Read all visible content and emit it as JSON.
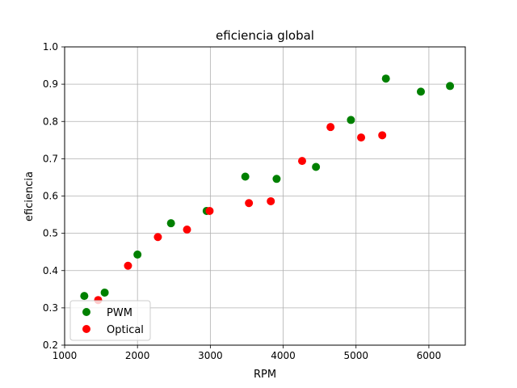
{
  "chart_data": {
    "type": "scatter",
    "title": "eficiencia global",
    "xlabel": "RPM",
    "ylabel": "eficiencia",
    "xlim": [
      1000,
      6500
    ],
    "ylim": [
      0.2,
      1.0
    ],
    "xticks": [
      1000,
      2000,
      3000,
      4000,
      5000,
      6000
    ],
    "yticks": [
      0.2,
      0.3,
      0.4,
      0.5,
      0.6,
      0.7,
      0.8,
      0.9,
      1.0
    ],
    "xtick_labels": [
      "1000",
      "2000",
      "3000",
      "4000",
      "5000",
      "6000"
    ],
    "ytick_labels": [
      "0.2",
      "0.3",
      "0.4",
      "0.5",
      "0.6",
      "0.7",
      "0.8",
      "0.9",
      "1.0"
    ],
    "grid": true,
    "legend_position": "lower-left",
    "series": [
      {
        "name": "PWM",
        "color": "#008000",
        "points": [
          {
            "x": 1270,
            "y": 0.332
          },
          {
            "x": 1550,
            "y": 0.341
          },
          {
            "x": 2000,
            "y": 0.443
          },
          {
            "x": 2460,
            "y": 0.527
          },
          {
            "x": 2950,
            "y": 0.56
          },
          {
            "x": 3480,
            "y": 0.652
          },
          {
            "x": 3910,
            "y": 0.646
          },
          {
            "x": 4450,
            "y": 0.678
          },
          {
            "x": 4930,
            "y": 0.804
          },
          {
            "x": 5410,
            "y": 0.915
          },
          {
            "x": 5890,
            "y": 0.88
          },
          {
            "x": 6290,
            "y": 0.895
          }
        ]
      },
      {
        "name": "Optical",
        "color": "#ff0000",
        "points": [
          {
            "x": 1460,
            "y": 0.321
          },
          {
            "x": 1870,
            "y": 0.413
          },
          {
            "x": 2280,
            "y": 0.49
          },
          {
            "x": 2680,
            "y": 0.51
          },
          {
            "x": 2990,
            "y": 0.56
          },
          {
            "x": 3530,
            "y": 0.581
          },
          {
            "x": 3830,
            "y": 0.586
          },
          {
            "x": 4260,
            "y": 0.694
          },
          {
            "x": 4650,
            "y": 0.785
          },
          {
            "x": 5070,
            "y": 0.757
          },
          {
            "x": 5360,
            "y": 0.763
          }
        ]
      }
    ]
  }
}
